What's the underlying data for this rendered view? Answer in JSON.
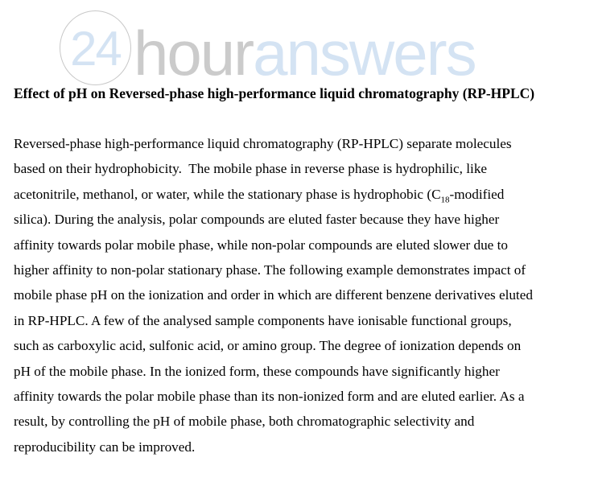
{
  "logo": {
    "number": "24",
    "word_hour": "hour",
    "word_answers": "answers",
    "colors": {
      "number": "#d4e3f3",
      "hour": "#cbcbcb",
      "answers": "#d4e3f3",
      "circle_border": "#c8c8c8"
    }
  },
  "title": "Effect of pH on Reversed-phase high-performance liquid chromatography (RP-HPLC)",
  "paragraph": {
    "lines": [
      "Reversed-phase high-performance liquid chromatography (RP-HPLC) separate molecules",
      "based on their hydrophobicity.  The mobile phase in reverse phase is hydrophilic, like",
      "",
      "silica). During the analysis, polar compounds are eluted faster because they have higher",
      "affinity towards polar mobile phase, while non-polar compounds are eluted slower due to",
      "higher affinity to non-polar stationary phase. The following example demonstrates impact of",
      "mobile phase pH on the ionization and order in which are different benzene derivatives eluted",
      "in RP-HPLC. A few of the analysed sample components have ionisable functional groups,",
      "such as carboxylic acid, sulfonic acid, or amino group. The degree of ionization depends on",
      "pH of the mobile phase. In the ionized form, these compounds have significantly higher",
      "affinity towards the polar mobile phase than its non-ionized form and are eluted earlier. As a",
      "result, by controlling the pH of mobile phase, both chromatographic selectivity and",
      "reproducibility can be improved."
    ],
    "line3": {
      "before": "acetonitrile, methanol, or water, while the stationary phase is hydrophobic (C",
      "sub": "18",
      "after": "-modified"
    }
  }
}
